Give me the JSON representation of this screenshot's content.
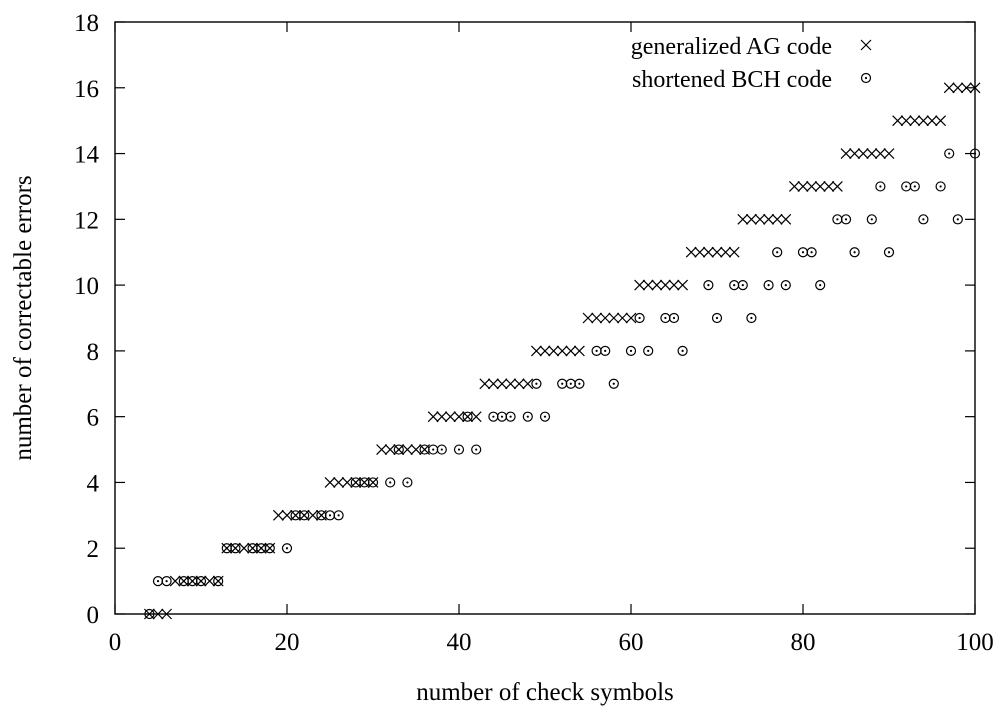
{
  "chart_data": {
    "type": "scatter",
    "xlabel": "number of check symbols",
    "ylabel": "number of correctable errors",
    "xlim": [
      0,
      100
    ],
    "ylim": [
      0,
      18
    ],
    "xticks": [
      0,
      20,
      40,
      60,
      80,
      100
    ],
    "yticks": [
      0,
      2,
      4,
      6,
      8,
      10,
      12,
      14,
      16,
      18
    ],
    "grid": false,
    "legend_position": "top-right",
    "series": [
      {
        "name": "generalized AG code",
        "marker": "cross",
        "points": [
          [
            4,
            0
          ],
          [
            5,
            0
          ],
          [
            6,
            0
          ],
          [
            7,
            1
          ],
          [
            8,
            1
          ],
          [
            9,
            1
          ],
          [
            10,
            1
          ],
          [
            11,
            1
          ],
          [
            12,
            1
          ],
          [
            13,
            2
          ],
          [
            14,
            2
          ],
          [
            15,
            2
          ],
          [
            16,
            2
          ],
          [
            17,
            2
          ],
          [
            18,
            2
          ],
          [
            19,
            3
          ],
          [
            20,
            3
          ],
          [
            21,
            3
          ],
          [
            22,
            3
          ],
          [
            23,
            3
          ],
          [
            24,
            3
          ],
          [
            25,
            4
          ],
          [
            26,
            4
          ],
          [
            27,
            4
          ],
          [
            28,
            4
          ],
          [
            29,
            4
          ],
          [
            30,
            4
          ],
          [
            31,
            5
          ],
          [
            32,
            5
          ],
          [
            33,
            5
          ],
          [
            34,
            5
          ],
          [
            35,
            5
          ],
          [
            36,
            5
          ],
          [
            37,
            6
          ],
          [
            38,
            6
          ],
          [
            39,
            6
          ],
          [
            40,
            6
          ],
          [
            41,
            6
          ],
          [
            42,
            6
          ],
          [
            43,
            7
          ],
          [
            44,
            7
          ],
          [
            45,
            7
          ],
          [
            46,
            7
          ],
          [
            47,
            7
          ],
          [
            48,
            7
          ],
          [
            49,
            8
          ],
          [
            50,
            8
          ],
          [
            51,
            8
          ],
          [
            52,
            8
          ],
          [
            53,
            8
          ],
          [
            54,
            8
          ],
          [
            55,
            9
          ],
          [
            56,
            9
          ],
          [
            57,
            9
          ],
          [
            58,
            9
          ],
          [
            59,
            9
          ],
          [
            60,
            9
          ],
          [
            61,
            10
          ],
          [
            62,
            10
          ],
          [
            63,
            10
          ],
          [
            64,
            10
          ],
          [
            65,
            10
          ],
          [
            66,
            10
          ],
          [
            67,
            11
          ],
          [
            68,
            11
          ],
          [
            69,
            11
          ],
          [
            70,
            11
          ],
          [
            71,
            11
          ],
          [
            72,
            11
          ],
          [
            73,
            12
          ],
          [
            74,
            12
          ],
          [
            75,
            12
          ],
          [
            76,
            12
          ],
          [
            77,
            12
          ],
          [
            78,
            12
          ],
          [
            79,
            13
          ],
          [
            80,
            13
          ],
          [
            81,
            13
          ],
          [
            82,
            13
          ],
          [
            83,
            13
          ],
          [
            84,
            13
          ],
          [
            85,
            14
          ],
          [
            86,
            14
          ],
          [
            87,
            14
          ],
          [
            88,
            14
          ],
          [
            89,
            14
          ],
          [
            90,
            14
          ],
          [
            91,
            15
          ],
          [
            92,
            15
          ],
          [
            93,
            15
          ],
          [
            94,
            15
          ],
          [
            95,
            15
          ],
          [
            96,
            15
          ],
          [
            97,
            16
          ],
          [
            98,
            16
          ],
          [
            99,
            16
          ],
          [
            100,
            16
          ]
        ]
      },
      {
        "name": "shortened BCH code",
        "marker": "circle-dot",
        "points": [
          [
            4,
            0
          ],
          [
            5,
            1
          ],
          [
            6,
            1
          ],
          [
            8,
            1
          ],
          [
            9,
            1
          ],
          [
            10,
            1
          ],
          [
            12,
            1
          ],
          [
            13,
            2
          ],
          [
            14,
            2
          ],
          [
            16,
            2
          ],
          [
            17,
            2
          ],
          [
            18,
            2
          ],
          [
            20,
            2
          ],
          [
            21,
            3
          ],
          [
            22,
            3
          ],
          [
            24,
            3
          ],
          [
            25,
            3
          ],
          [
            26,
            3
          ],
          [
            28,
            4
          ],
          [
            29,
            4
          ],
          [
            30,
            4
          ],
          [
            32,
            4
          ],
          [
            34,
            4
          ],
          [
            33,
            5
          ],
          [
            36,
            5
          ],
          [
            37,
            5
          ],
          [
            38,
            5
          ],
          [
            40,
            5
          ],
          [
            42,
            5
          ],
          [
            41,
            6
          ],
          [
            44,
            6
          ],
          [
            45,
            6
          ],
          [
            46,
            6
          ],
          [
            48,
            6
          ],
          [
            50,
            6
          ],
          [
            49,
            7
          ],
          [
            52,
            7
          ],
          [
            53,
            7
          ],
          [
            54,
            7
          ],
          [
            58,
            7
          ],
          [
            56,
            8
          ],
          [
            57,
            8
          ],
          [
            60,
            8
          ],
          [
            62,
            8
          ],
          [
            66,
            8
          ],
          [
            61,
            9
          ],
          [
            64,
            9
          ],
          [
            65,
            9
          ],
          [
            70,
            9
          ],
          [
            74,
            9
          ],
          [
            69,
            10
          ],
          [
            72,
            10
          ],
          [
            73,
            10
          ],
          [
            76,
            10
          ],
          [
            78,
            10
          ],
          [
            82,
            10
          ],
          [
            77,
            11
          ],
          [
            80,
            11
          ],
          [
            81,
            11
          ],
          [
            86,
            11
          ],
          [
            90,
            11
          ],
          [
            84,
            12
          ],
          [
            85,
            12
          ],
          [
            88,
            12
          ],
          [
            94,
            12
          ],
          [
            98,
            12
          ],
          [
            89,
            13
          ],
          [
            92,
            13
          ],
          [
            93,
            13
          ],
          [
            96,
            13
          ],
          [
            97,
            14
          ],
          [
            100,
            14
          ]
        ]
      }
    ]
  }
}
